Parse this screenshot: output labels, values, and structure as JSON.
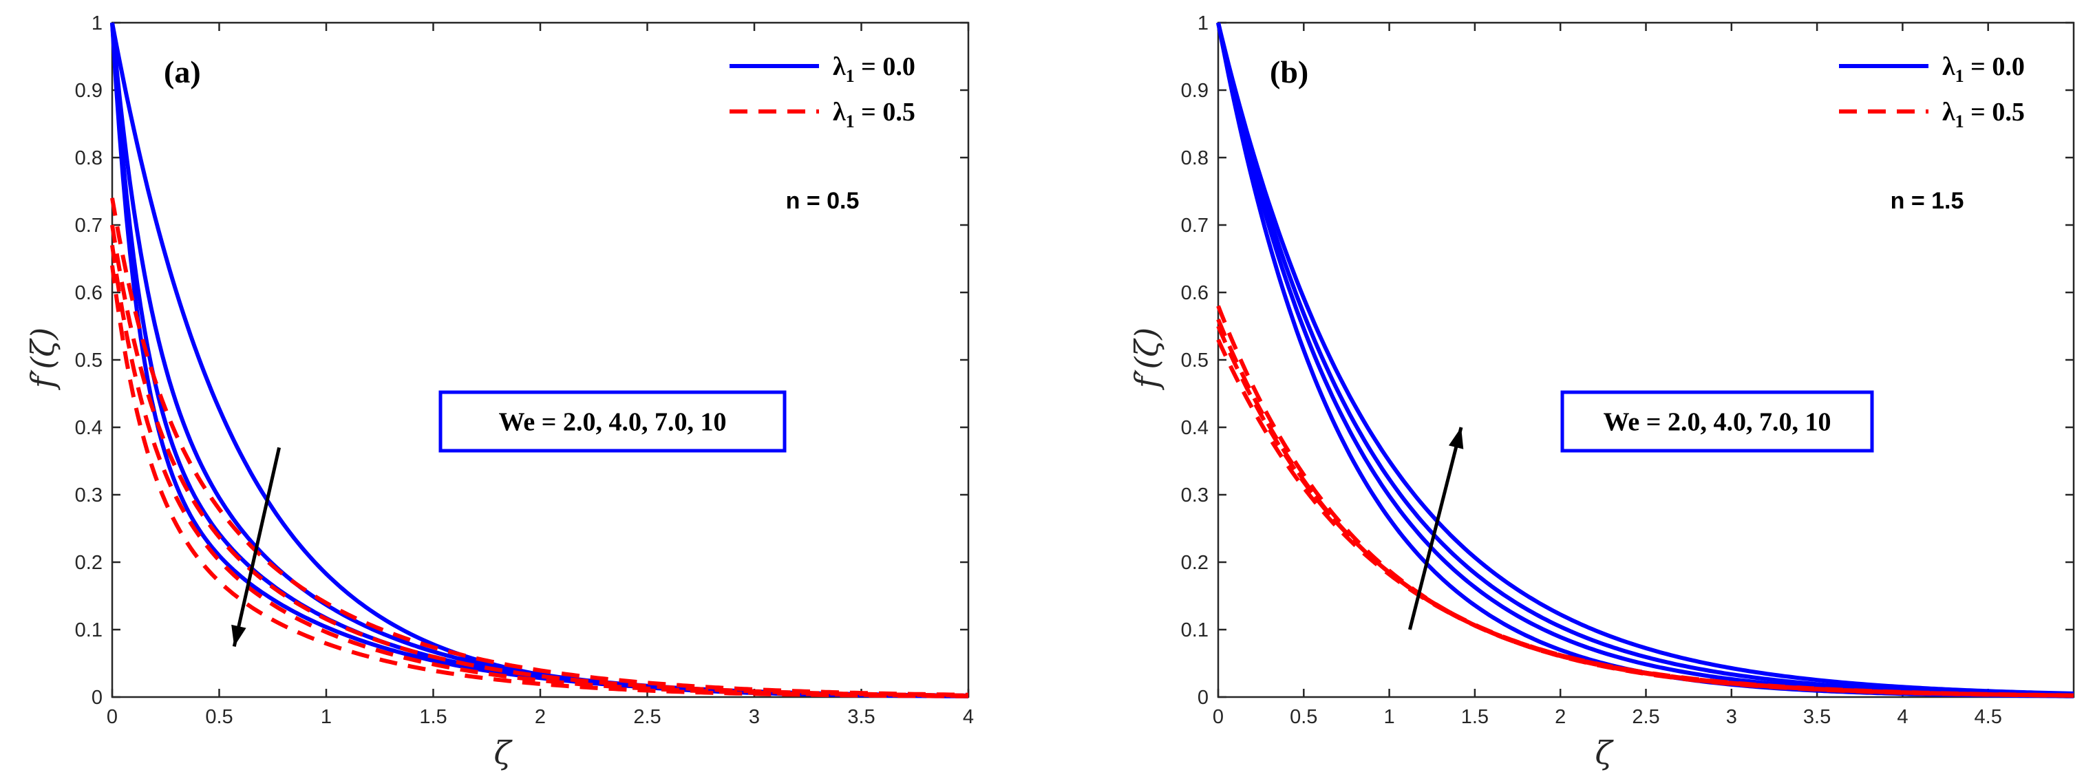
{
  "chart_data": [
    {
      "type": "line",
      "panel_label": "(a)",
      "xlabel": "ζ",
      "ylabel": "f′(ζ)",
      "xlim": [
        0,
        4
      ],
      "ylim": [
        0,
        1
      ],
      "xticks": [
        "0",
        "0.5",
        "1",
        "1.5",
        "2",
        "2.5",
        "3",
        "3.5",
        "4"
      ],
      "yticks": [
        "0",
        "0.1",
        "0.2",
        "0.3",
        "0.4",
        "0.5",
        "0.6",
        "0.7",
        "0.8",
        "0.9",
        "1"
      ],
      "legend": [
        {
          "name": "λ",
          "sub": "1",
          "value": " = 0.0",
          "color": "#0000ff",
          "style": "solid"
        },
        {
          "name": "λ",
          "sub": "1",
          "value": " = 0.5",
          "color": "#ff0000",
          "style": "dashed"
        }
      ],
      "annotation": "n = 0.5",
      "box_text": "We = 2.0, 4.0, 7.0, 10",
      "arrow": {
        "from": [
          0.78,
          0.37
        ],
        "to": [
          0.57,
          0.075
        ],
        "direction": "decreasing with We"
      },
      "series": [
        {
          "name": "λ1 = 0.0, We = 2.0",
          "style": "solid",
          "color": "#0000ff",
          "model": "exp",
          "params": {
            "a": 1.0,
            "k": 1.7
          }
        },
        {
          "name": "λ1 = 0.0, We = 4.0",
          "style": "solid",
          "color": "#0000ff",
          "model": "exp2",
          "params": {
            "a": 1.0,
            "w": 0.45,
            "k1": 6.0,
            "k2": 1.4
          }
        },
        {
          "name": "λ1 = 0.0, We = 7.0",
          "style": "solid",
          "color": "#0000ff",
          "model": "exp2",
          "params": {
            "a": 1.0,
            "w": 0.55,
            "k1": 7.5,
            "k2": 1.35
          }
        },
        {
          "name": "λ1 = 0.0, We = 10",
          "style": "solid",
          "color": "#0000ff",
          "model": "exp2",
          "params": {
            "a": 1.0,
            "w": 0.62,
            "k1": 8.0,
            "k2": 1.3
          }
        },
        {
          "name": "λ1 = 0.5, We = 2.0",
          "style": "dashed",
          "color": "#ff0000",
          "model": "exp2",
          "params": {
            "a": 0.74,
            "w": 0.35,
            "k1": 5.0,
            "k2": 1.25
          }
        },
        {
          "name": "λ1 = 0.5, We = 4.0",
          "style": "dashed",
          "color": "#ff0000",
          "model": "exp2",
          "params": {
            "a": 0.7,
            "w": 0.4,
            "k1": 5.5,
            "k2": 1.3
          }
        },
        {
          "name": "λ1 = 0.5, We = 7.0",
          "style": "dashed",
          "color": "#ff0000",
          "model": "exp2",
          "params": {
            "a": 0.67,
            "w": 0.45,
            "k1": 6.0,
            "k2": 1.35
          }
        },
        {
          "name": "λ1 = 0.5, We = 10",
          "style": "dashed",
          "color": "#ff0000",
          "model": "exp2",
          "params": {
            "a": 0.64,
            "w": 0.5,
            "k1": 6.5,
            "k2": 1.4
          }
        }
      ]
    },
    {
      "type": "line",
      "panel_label": "(b)",
      "xlabel": "ζ",
      "ylabel": "f′(ζ)",
      "xlim": [
        0,
        5
      ],
      "ylim": [
        0,
        1
      ],
      "xticks": [
        "0",
        "0.5",
        "1",
        "1.5",
        "2",
        "2.5",
        "3",
        "3.5",
        "4",
        "4.5"
      ],
      "yticks": [
        "0",
        "0.1",
        "0.2",
        "0.3",
        "0.4",
        "0.5",
        "0.6",
        "0.7",
        "0.8",
        "0.9",
        "1"
      ],
      "legend": [
        {
          "name": "λ",
          "sub": "1",
          "value": " = 0.0",
          "color": "#0000ff",
          "style": "solid"
        },
        {
          "name": "λ",
          "sub": "1",
          "value": " = 0.5",
          "color": "#ff0000",
          "style": "dashed"
        }
      ],
      "annotation": "n = 1.5",
      "box_text": "We = 2.0, 4.0, 7.0, 10",
      "arrow": {
        "from": [
          1.12,
          0.1
        ],
        "to": [
          1.42,
          0.4
        ],
        "direction": "increasing with We"
      },
      "series": [
        {
          "name": "λ1 = 0.0, We = 2.0",
          "style": "solid",
          "color": "#0000ff",
          "model": "exp",
          "params": {
            "a": 1.0,
            "k": 1.33
          }
        },
        {
          "name": "λ1 = 0.0, We = 4.0",
          "style": "solid",
          "color": "#0000ff",
          "model": "exp",
          "params": {
            "a": 1.0,
            "k": 1.21
          }
        },
        {
          "name": "λ1 = 0.0, We = 7.0",
          "style": "solid",
          "color": "#0000ff",
          "model": "exp",
          "params": {
            "a": 1.0,
            "k": 1.13
          }
        },
        {
          "name": "λ1 = 0.0, We = 10",
          "style": "solid",
          "color": "#0000ff",
          "model": "exp",
          "params": {
            "a": 1.0,
            "k": 1.05
          }
        },
        {
          "name": "λ1 = 0.5, We = 2.0",
          "style": "dashed",
          "color": "#ff0000",
          "model": "exp",
          "params": {
            "a": 0.58,
            "k": 1.13
          }
        },
        {
          "name": "λ1 = 0.5, We = 4.0",
          "style": "dashed",
          "color": "#ff0000",
          "model": "exp",
          "params": {
            "a": 0.56,
            "k": 1.11
          }
        },
        {
          "name": "λ1 = 0.5, We = 7.0",
          "style": "dashed",
          "color": "#ff0000",
          "model": "exp",
          "params": {
            "a": 0.55,
            "k": 1.09
          }
        },
        {
          "name": "λ1 = 0.5, We = 10",
          "style": "dashed",
          "color": "#ff0000",
          "model": "exp",
          "params": {
            "a": 0.53,
            "k": 1.07
          }
        }
      ]
    }
  ]
}
